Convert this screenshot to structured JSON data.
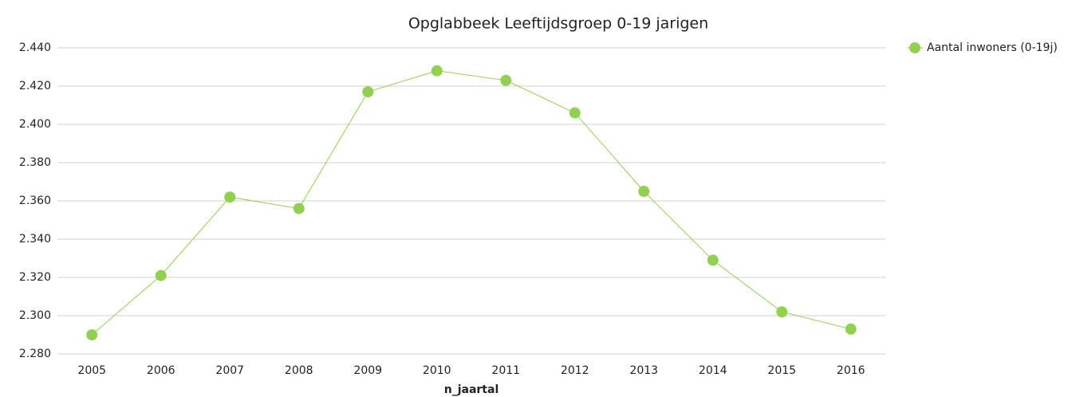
{
  "chart_data": {
    "type": "line",
    "title": "Opglabbeek  Leeftijdsgroep 0-19 jarigen",
    "x_label": "n_jaartal",
    "categories": [
      "2005",
      "2006",
      "2007",
      "2008",
      "2009",
      "2010",
      "2011",
      "2012",
      "2013",
      "2014",
      "2015",
      "2016"
    ],
    "series": [
      {
        "name": "Aantal inwoners (0-19j)",
        "color": "#92d050",
        "values": [
          2290,
          2321,
          2362,
          2356,
          2417,
          2428,
          2423,
          2406,
          2365,
          2329,
          2302,
          2293
        ]
      }
    ],
    "ylim": [
      2280,
      2440
    ],
    "yticks": [
      {
        "value": 2280,
        "label": "2.280"
      },
      {
        "value": 2300,
        "label": "2.300"
      },
      {
        "value": 2320,
        "label": "2.320"
      },
      {
        "value": 2340,
        "label": "2.340"
      },
      {
        "value": 2360,
        "label": "2.360"
      },
      {
        "value": 2380,
        "label": "2.380"
      },
      {
        "value": 2400,
        "label": "2.400"
      },
      {
        "value": 2420,
        "label": "2.420"
      },
      {
        "value": 2440,
        "label": "2.440"
      }
    ],
    "grid": true,
    "legend": "top-right"
  }
}
